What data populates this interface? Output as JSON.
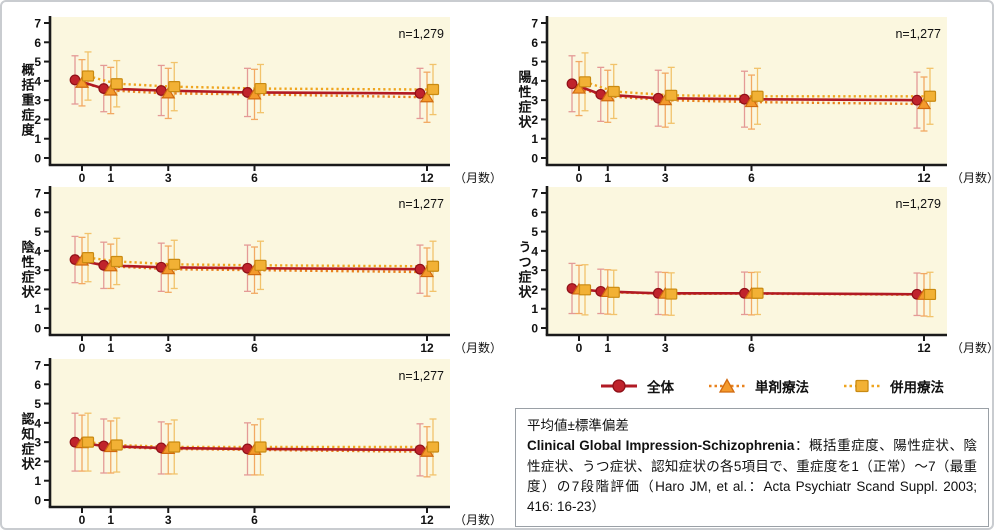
{
  "colors": {
    "plot_bg": "#FBF7DF",
    "axis": "#1a1a1a",
    "zentai": {
      "line": "#B11A24",
      "fill": "#C0232C",
      "stroke": "#8F1018",
      "err": "#E49A96"
    },
    "tanzai": {
      "line": "#E8821E",
      "fill": "#F49A2C",
      "stroke": "#D06A10",
      "err": "#F2A963"
    },
    "heiyo": {
      "line": "#EFA51F",
      "fill": "#F2B135",
      "stroke": "#C98A12",
      "err": "#F2C36B"
    }
  },
  "legend": {
    "items": [
      {
        "key": "zentai",
        "marker": "circle",
        "label": "全体"
      },
      {
        "key": "tanzai",
        "marker": "triangle",
        "label": "単剤療法"
      },
      {
        "key": "heiyo",
        "marker": "square",
        "label": "併用療法"
      }
    ]
  },
  "chart_data": [
    {
      "type": "line",
      "title": "概括重症度",
      "n_label": "n=1,279",
      "x": [
        0,
        1,
        3,
        6,
        12
      ],
      "x_tick_labels": [
        "0",
        "1",
        "3",
        "6",
        "12"
      ],
      "xlabel": "（月数）",
      "ylim": [
        0,
        7
      ],
      "y_ticks": [
        "0",
        "1",
        "2",
        "3",
        "4",
        "5",
        "6",
        "7"
      ],
      "error_bars": "±SD",
      "series": [
        {
          "key": "zentai",
          "name": "全体",
          "values": [
            4.05,
            3.6,
            3.5,
            3.4,
            3.35
          ],
          "sd": [
            1.25,
            1.2,
            1.3,
            1.25,
            1.3
          ]
        },
        {
          "key": "tanzai",
          "name": "単剤療法",
          "values": [
            3.9,
            3.5,
            3.35,
            3.3,
            3.15
          ],
          "sd": [
            1.2,
            1.2,
            1.3,
            1.3,
            1.3
          ]
        },
        {
          "key": "heiyo",
          "name": "併用療法",
          "values": [
            4.25,
            3.85,
            3.7,
            3.6,
            3.55
          ],
          "sd": [
            1.25,
            1.2,
            1.25,
            1.25,
            1.3
          ]
        }
      ]
    },
    {
      "type": "line",
      "title": "陽性症状",
      "n_label": "n=1,277",
      "x": [
        0,
        1,
        3,
        6,
        12
      ],
      "x_tick_labels": [
        "0",
        "1",
        "3",
        "6",
        "12"
      ],
      "xlabel": "（月数）",
      "ylim": [
        0,
        7
      ],
      "y_ticks": [
        "0",
        "1",
        "2",
        "3",
        "4",
        "5",
        "6",
        "7"
      ],
      "error_bars": "±SD",
      "series": [
        {
          "key": "zentai",
          "name": "全体",
          "values": [
            3.85,
            3.3,
            3.1,
            3.05,
            3.0
          ],
          "sd": [
            1.45,
            1.4,
            1.45,
            1.45,
            1.45
          ]
        },
        {
          "key": "tanzai",
          "name": "単剤療法",
          "values": [
            3.6,
            3.2,
            3.0,
            2.9,
            2.8
          ],
          "sd": [
            1.4,
            1.35,
            1.4,
            1.4,
            1.4
          ]
        },
        {
          "key": "heiyo",
          "name": "併用療法",
          "values": [
            3.95,
            3.45,
            3.25,
            3.2,
            3.2
          ],
          "sd": [
            1.5,
            1.4,
            1.45,
            1.45,
            1.45
          ]
        }
      ]
    },
    {
      "type": "line",
      "title": "陰性症状",
      "n_label": "n=1,277",
      "x": [
        0,
        1,
        3,
        6,
        12
      ],
      "x_tick_labels": [
        "0",
        "1",
        "3",
        "6",
        "12"
      ],
      "xlabel": "（月数）",
      "ylim": [
        0,
        7
      ],
      "y_ticks": [
        "0",
        "1",
        "2",
        "3",
        "4",
        "5",
        "6",
        "7"
      ],
      "error_bars": "±SD",
      "series": [
        {
          "key": "zentai",
          "name": "全体",
          "values": [
            3.55,
            3.25,
            3.15,
            3.1,
            3.05
          ],
          "sd": [
            1.2,
            1.2,
            1.25,
            1.2,
            1.25
          ]
        },
        {
          "key": "tanzai",
          "name": "単剤療法",
          "values": [
            3.5,
            3.2,
            3.05,
            3.0,
            2.9
          ],
          "sd": [
            1.2,
            1.15,
            1.2,
            1.2,
            1.25
          ]
        },
        {
          "key": "heiyo",
          "name": "併用療法",
          "values": [
            3.65,
            3.45,
            3.3,
            3.25,
            3.2
          ],
          "sd": [
            1.25,
            1.2,
            1.25,
            1.25,
            1.3
          ]
        }
      ]
    },
    {
      "type": "line",
      "title": "うつ症状",
      "n_label": "n=1,279",
      "x": [
        0,
        1,
        3,
        6,
        12
      ],
      "x_tick_labels": [
        "0",
        "1",
        "3",
        "6",
        "12"
      ],
      "xlabel": "（月数）",
      "ylim": [
        0,
        7
      ],
      "y_ticks": [
        "0",
        "1",
        "2",
        "3",
        "4",
        "5",
        "6",
        "7"
      ],
      "error_bars": "±SD",
      "series": [
        {
          "key": "zentai",
          "name": "全体",
          "values": [
            2.05,
            1.9,
            1.8,
            1.8,
            1.75
          ],
          "sd": [
            1.3,
            1.15,
            1.1,
            1.1,
            1.1
          ]
        },
        {
          "key": "tanzai",
          "name": "単剤療法",
          "values": [
            2.0,
            1.87,
            1.78,
            1.78,
            1.72
          ],
          "sd": [
            1.25,
            1.15,
            1.1,
            1.1,
            1.1
          ]
        },
        {
          "key": "heiyo",
          "name": "併用療法",
          "values": [
            1.98,
            1.85,
            1.76,
            1.8,
            1.74
          ],
          "sd": [
            1.3,
            1.15,
            1.1,
            1.1,
            1.15
          ]
        }
      ]
    },
    {
      "type": "line",
      "title": "認知症状",
      "n_label": "n=1,277",
      "x": [
        0,
        1,
        3,
        6,
        12
      ],
      "x_tick_labels": [
        "0",
        "1",
        "3",
        "6",
        "12"
      ],
      "xlabel": "（月数）",
      "ylim": [
        0,
        7
      ],
      "y_ticks": [
        "0",
        "1",
        "2",
        "3",
        "4",
        "5",
        "6",
        "7"
      ],
      "error_bars": "±SD",
      "series": [
        {
          "key": "zentai",
          "name": "全体",
          "values": [
            3.0,
            2.8,
            2.7,
            2.65,
            2.6
          ],
          "sd": [
            1.5,
            1.4,
            1.35,
            1.35,
            1.35
          ]
        },
        {
          "key": "tanzai",
          "name": "単剤療法",
          "values": [
            2.95,
            2.75,
            2.65,
            2.6,
            2.5
          ],
          "sd": [
            1.45,
            1.35,
            1.3,
            1.3,
            1.3
          ]
        },
        {
          "key": "heiyo",
          "name": "併用療法",
          "values": [
            3.0,
            2.85,
            2.75,
            2.75,
            2.75
          ],
          "sd": [
            1.5,
            1.4,
            1.4,
            1.45,
            1.45
          ]
        }
      ]
    }
  ],
  "note": {
    "line1": "平均値±標準偏差",
    "bold": "Clinical Global Impression-Schizophrenia",
    "rest": "：概括重症度、陽性症状、陰性症状、うつ症状、認知症状の各5項目で、重症度を1（正常）～7（最重度）の7段階評価（Haro JM, et al.：Acta Psychiatr Scand Suppl. 2003; 416: 16-23）"
  }
}
